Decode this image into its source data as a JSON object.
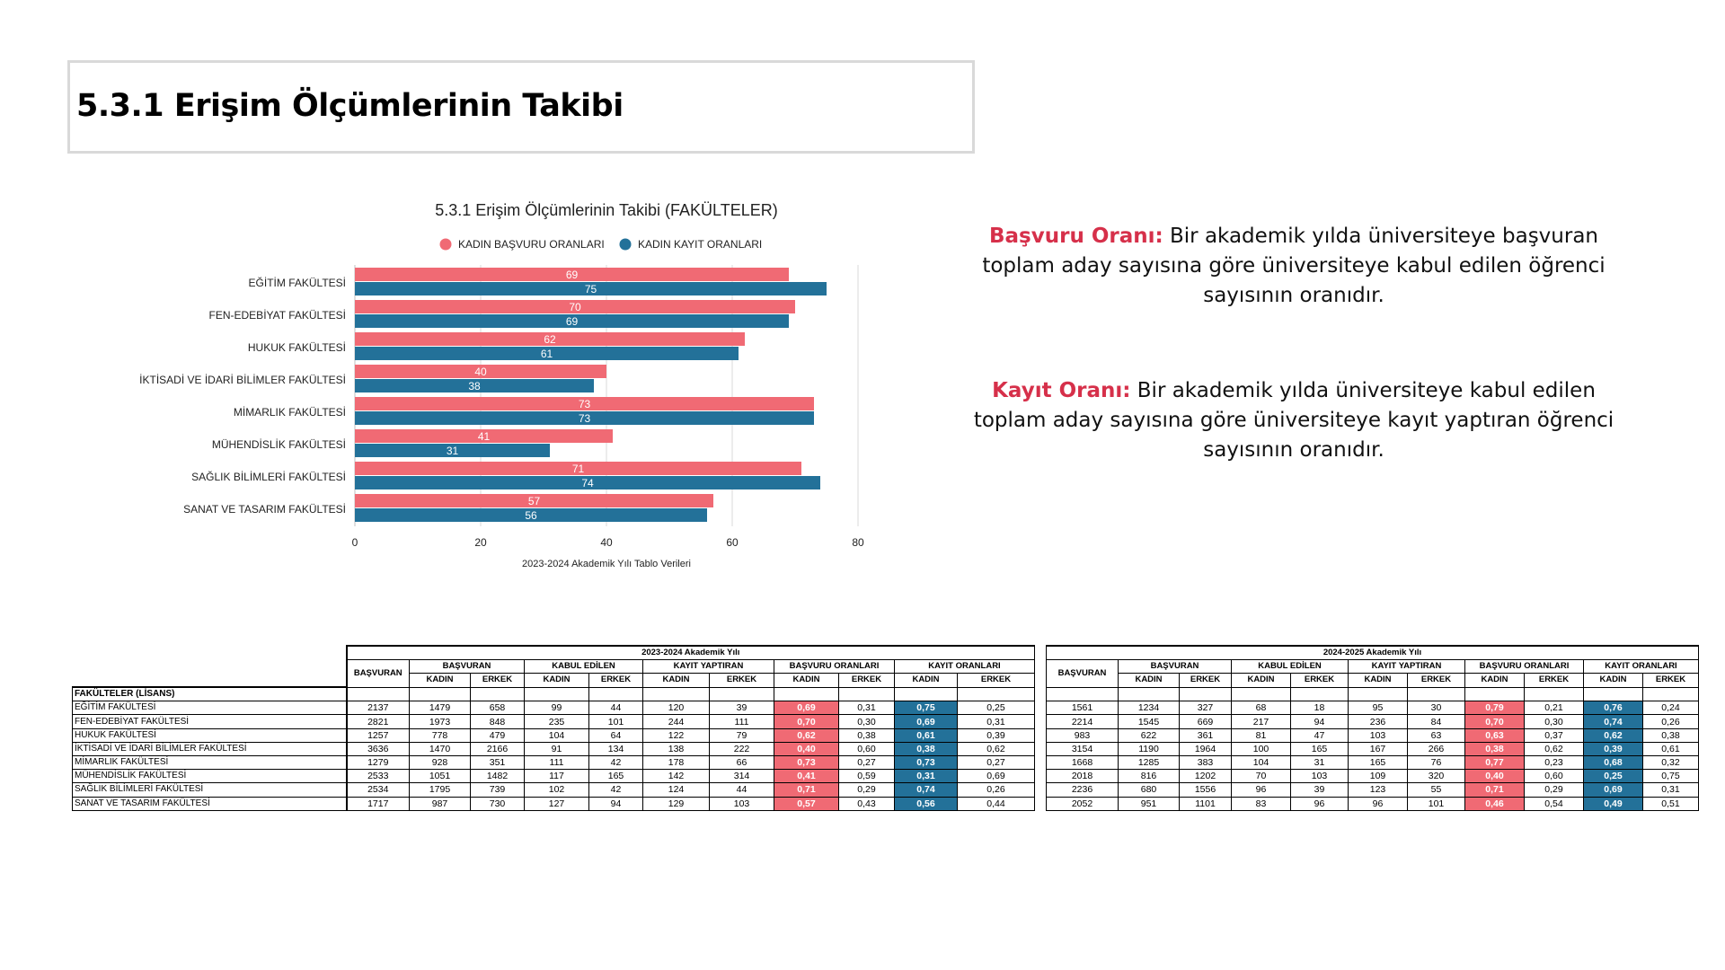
{
  "page": {
    "title": "5.3.1 Erişim Ölçümlerinin Takibi"
  },
  "definitions": [
    {
      "term": "Başvuru Oranı:",
      "text": " Bir akademik yılda üniversiteye başvuran toplam aday sayısına göre üniversiteye kabul edilen öğrenci sayısının oranıdır."
    },
    {
      "term": "Kayıt Oranı:",
      "text": " Bir akademik yılda üniversiteye kabul edilen toplam aday sayısına göre üniversiteye kayıt yaptıran öğrenci sayısının oranıdır."
    }
  ],
  "chart_data": {
    "type": "bar",
    "orientation": "horizontal",
    "title": "5.3.1 Erişim Ölçümlerinin Takibi (FAKÜLTELER)",
    "xlabel": "2023-2024 Akademik Yılı Tablo Verileri",
    "xlim": [
      0,
      80
    ],
    "xticks": [
      0,
      20,
      40,
      60,
      80
    ],
    "grid": true,
    "legend_position": "top",
    "categories": [
      "EĞİTİM FAKÜLTESİ",
      "FEN-EDEBİYAT FAKÜLTESİ",
      "HUKUK FAKÜLTESİ",
      "İKTİSADİ VE İDARİ BİLİMLER FAKÜLTESİ",
      "MİMARLIK FAKÜLTESİ",
      "MÜHENDİSLİK FAKÜLTESİ",
      "SAĞLIK BİLİMLERİ FAKÜLTESİ",
      "SANAT VE TASARIM FAKÜLTESİ"
    ],
    "series": [
      {
        "name": "KADIN BAŞVURU ORANLARI",
        "color": "#f06a74",
        "values": [
          69,
          70,
          62,
          40,
          73,
          41,
          71,
          57
        ]
      },
      {
        "name": "KADIN KAYIT ORANLARI",
        "color": "#237199",
        "values": [
          75,
          69,
          61,
          38,
          73,
          31,
          74,
          56
        ]
      }
    ]
  },
  "table": {
    "corner_label": "FAKÜLTELER (LİSANS)",
    "years": [
      "2023-2024 Akademik Yılı",
      "2024-2025 Akademik Yılı"
    ],
    "group_headers": [
      "BAŞVURAN",
      "KABUL EDİLEN",
      "KAYIT YAPTIRAN",
      "BAŞVURU ORANLARI",
      "KAYIT ORANLARI"
    ],
    "total_header": "BAŞVURAN",
    "sub_headers": [
      "KADIN",
      "ERKEK"
    ],
    "rows": [
      {
        "faculty": "EĞİTİM FAKÜLTESİ",
        "y1": [
          "2137",
          "1479",
          "658",
          "99",
          "44",
          "120",
          "39",
          "0,69",
          "0,31",
          "0,75",
          "0,25"
        ],
        "y2": [
          "1561",
          "1234",
          "327",
          "68",
          "18",
          "95",
          "30",
          "0,79",
          "0,21",
          "0,76",
          "0,24"
        ]
      },
      {
        "faculty": "FEN-EDEBİYAT FAKÜLTESİ",
        "y1": [
          "2821",
          "1973",
          "848",
          "235",
          "101",
          "244",
          "111",
          "0,70",
          "0,30",
          "0,69",
          "0,31"
        ],
        "y2": [
          "2214",
          "1545",
          "669",
          "217",
          "94",
          "236",
          "84",
          "0,70",
          "0,30",
          "0,74",
          "0,26"
        ]
      },
      {
        "faculty": "HUKUK FAKÜLTESİ",
        "y1": [
          "1257",
          "778",
          "479",
          "104",
          "64",
          "122",
          "79",
          "0,62",
          "0,38",
          "0,61",
          "0,39"
        ],
        "y2": [
          "983",
          "622",
          "361",
          "81",
          "47",
          "103",
          "63",
          "0,63",
          "0,37",
          "0,62",
          "0,38"
        ]
      },
      {
        "faculty": "İKTİSADİ VE İDARİ BİLİMLER FAKÜLTESİ",
        "y1": [
          "3636",
          "1470",
          "2166",
          "91",
          "134",
          "138",
          "222",
          "0,40",
          "0,60",
          "0,38",
          "0,62"
        ],
        "y2": [
          "3154",
          "1190",
          "1964",
          "100",
          "165",
          "167",
          "266",
          "0,38",
          "0,62",
          "0,39",
          "0,61"
        ]
      },
      {
        "faculty": "MİMARLIK FAKÜLTESİ",
        "y1": [
          "1279",
          "928",
          "351",
          "111",
          "42",
          "178",
          "66",
          "0,73",
          "0,27",
          "0,73",
          "0,27"
        ],
        "y2": [
          "1668",
          "1285",
          "383",
          "104",
          "31",
          "165",
          "76",
          "0,77",
          "0,23",
          "0,68",
          "0,32"
        ]
      },
      {
        "faculty": "MÜHENDİSLİK FAKÜLTESİ",
        "y1": [
          "2533",
          "1051",
          "1482",
          "117",
          "165",
          "142",
          "314",
          "0,41",
          "0,59",
          "0,31",
          "0,69"
        ],
        "y2": [
          "2018",
          "816",
          "1202",
          "70",
          "103",
          "109",
          "320",
          "0,40",
          "0,60",
          "0,25",
          "0,75"
        ]
      },
      {
        "faculty": "SAĞLIK BİLİMLERİ FAKÜLTESİ",
        "y1": [
          "2534",
          "1795",
          "739",
          "102",
          "42",
          "124",
          "44",
          "0,71",
          "0,29",
          "0,74",
          "0,26"
        ],
        "y2": [
          "2236",
          "680",
          "1556",
          "96",
          "39",
          "123",
          "55",
          "0,71",
          "0,29",
          "0,69",
          "0,31"
        ]
      },
      {
        "faculty": "SANAT VE TASARIM FAKÜLTESİ",
        "y1": [
          "1717",
          "987",
          "730",
          "127",
          "94",
          "129",
          "103",
          "0,57",
          "0,43",
          "0,56",
          "0,44"
        ],
        "y2": [
          "2052",
          "951",
          "1101",
          "83",
          "96",
          "96",
          "101",
          "0,46",
          "0,54",
          "0,49",
          "0,51"
        ]
      }
    ]
  }
}
